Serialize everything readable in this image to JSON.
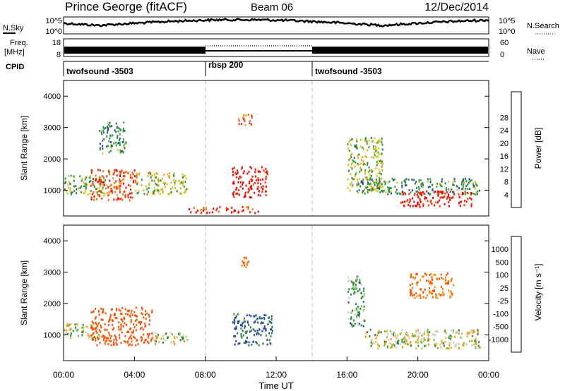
{
  "header": {
    "station": "Prince George (fitACF)",
    "beam": "Beam 06",
    "date": "12/Dec/2014"
  },
  "nsky_panel": {
    "left_label": "N.Sky",
    "left_ticks": [
      "10^5",
      "10^0"
    ],
    "right_ticks": [
      "10^5",
      "10^0"
    ],
    "right_label": "N.Search"
  },
  "freq_panel": {
    "left_label_1": "Freq.",
    "left_label_2": "[MHz]",
    "left_ticks": [
      "18",
      "8"
    ],
    "right_ticks": [
      "60",
      "0"
    ],
    "right_label": "Nave"
  },
  "cpid_panel": {
    "label": "CPID",
    "segments": [
      {
        "start": 0,
        "end": 8,
        "name": "twofsound -3503"
      },
      {
        "start": 8,
        "end": 14,
        "name": "rbsp 200"
      },
      {
        "start": 14,
        "end": 24,
        "name": "twofsound -3503"
      }
    ]
  },
  "colors": {
    "power": [
      "#1a1aff",
      "#2244aa",
      "#2f7a50",
      "#2e9e3a",
      "#c8c820",
      "#f0a020",
      "#ff6a00",
      "#ff2a00",
      "#ff0000"
    ],
    "velocity": [
      "#0a2ad0",
      "#2a4aa0",
      "#2a8a3a",
      "#66cc33",
      "#c8c8c8",
      "#f0b040",
      "#ff8a00",
      "#ff5000",
      "#ff0000"
    ],
    "ground_scatter": "#bbbbbb"
  },
  "chart_data": [
    {
      "type": "heatmap",
      "title": "",
      "xlabel": "",
      "ylabel": "Slant Range [km]",
      "xlim": [
        0,
        24
      ],
      "ylim": [
        180,
        4500
      ],
      "x_ticks": [
        "00:00",
        "04:00",
        "08:00",
        "12:00",
        "16:00",
        "20:00",
        "00:00"
      ],
      "y_ticks": [
        "1000",
        "2000",
        "3000",
        "4000"
      ],
      "colorbar_label": "Power [dB]",
      "colorbar_ticks": [
        "4",
        "8",
        "12",
        "16",
        "20",
        "24",
        "28"
      ],
      "colorbar_range": [
        0,
        30
      ],
      "regions": [
        {
          "t0": 0,
          "t1": 2.5,
          "r0": 900,
          "r1": 1500,
          "value": 12
        },
        {
          "t0": 1.5,
          "t1": 4,
          "r0": 700,
          "r1": 1700,
          "value": 24
        },
        {
          "t0": 4,
          "t1": 7,
          "r0": 900,
          "r1": 1600,
          "value": 16
        },
        {
          "t0": 2,
          "t1": 3.5,
          "r0": 2200,
          "r1": 3200,
          "value": 10
        },
        {
          "t0": 9.5,
          "t1": 11.5,
          "r0": 800,
          "r1": 1800,
          "value": 28
        },
        {
          "t0": 7,
          "t1": 11,
          "r0": 300,
          "r1": 500,
          "value": 26
        },
        {
          "t0": 9.8,
          "t1": 10.6,
          "r0": 3100,
          "r1": 3500,
          "value": 22
        },
        {
          "t0": 16,
          "t1": 18,
          "r0": 1000,
          "r1": 2700,
          "value": 14
        },
        {
          "t0": 16.5,
          "t1": 23.5,
          "r0": 900,
          "r1": 1400,
          "value": 10
        },
        {
          "t0": 19,
          "t1": 23,
          "r0": 500,
          "r1": 1000,
          "value": 28
        }
      ],
      "time_markers": [
        8,
        14
      ]
    },
    {
      "type": "heatmap",
      "title": "",
      "xlabel": "Time UT",
      "ylabel": "Slant Range [km]",
      "xlim": [
        0,
        24
      ],
      "ylim": [
        180,
        4500
      ],
      "x_ticks": [
        "00:00",
        "04:00",
        "08:00",
        "12:00",
        "16:00",
        "20:00",
        "00:00"
      ],
      "y_ticks": [
        "1000",
        "2000",
        "3000",
        "4000"
      ],
      "colorbar_label": "Velocity [m s⁻¹]",
      "colorbar_ticks": [
        "1000",
        "500",
        "100",
        "25",
        "-25",
        "-100",
        "-500",
        "-1000"
      ],
      "colorbar_range": [
        -1000,
        1000
      ],
      "regions": [
        {
          "t0": 0,
          "t1": 2,
          "r0": 900,
          "r1": 1400,
          "value": 0
        },
        {
          "t0": 1.5,
          "t1": 5,
          "r0": 700,
          "r1": 1900,
          "value": -400
        },
        {
          "t0": 5,
          "t1": 7,
          "r0": 700,
          "r1": 1100,
          "value": 0
        },
        {
          "t0": 9.5,
          "t1": 11.8,
          "r0": 700,
          "r1": 1700,
          "value": 300
        },
        {
          "t0": 10,
          "t1": 10.6,
          "r0": 3100,
          "r1": 3500,
          "value": -200
        },
        {
          "t0": 16,
          "t1": 17,
          "r0": 1300,
          "r1": 2900,
          "value": 120
        },
        {
          "t0": 17,
          "t1": 23.5,
          "r0": 600,
          "r1": 1200,
          "value": 0
        },
        {
          "t0": 19.5,
          "t1": 22,
          "r0": 2200,
          "r1": 3000,
          "value": -300
        }
      ],
      "time_markers": [
        8,
        14
      ]
    }
  ]
}
